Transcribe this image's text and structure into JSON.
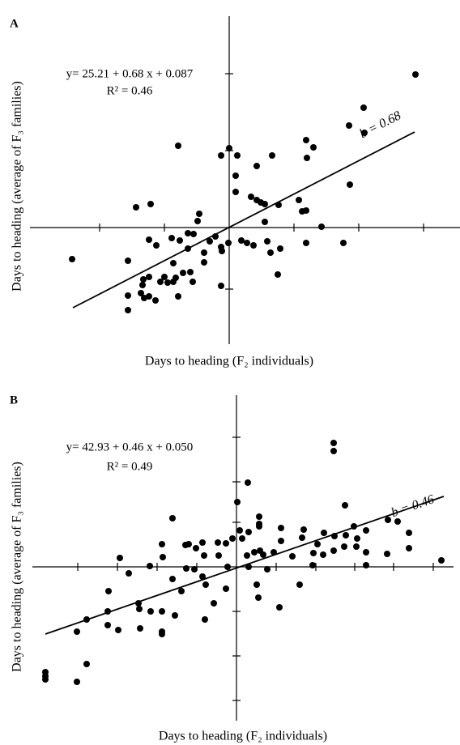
{
  "chart_data": [
    {
      "type": "scatter",
      "panel_label": "A",
      "equation": "y= 25.21 + 0.68 x + 0.087",
      "r_squared": "R² = 0.46",
      "slope_label": "b = 0.68",
      "x_label": "Days to heading (F₂ individuals)",
      "y_label": "Days to heading (average of F₃ families)",
      "color": "#000000",
      "xlim": [
        -24.6,
        28.5
      ],
      "ylim": [
        -14.4,
        26.1
      ],
      "xticks": [
        -16,
        -8,
        8,
        16,
        24
      ],
      "yticks": [
        -7.6,
        9.5,
        19
      ],
      "x": [
        23,
        16.6,
        14.8,
        16.7,
        9.5,
        10.4,
        -6.3,
        0,
        -1,
        1,
        5.3,
        3.4,
        0.8,
        9.6,
        14.9,
        0.8,
        2.7,
        3.4,
        3.9,
        4.4,
        6.1,
        8.6,
        9,
        9.5,
        -9.7,
        -11.5,
        -3.7,
        4.4,
        -3.9,
        11.4,
        -5.1,
        -4.4,
        -6.1,
        -7.1,
        -9.9,
        -9,
        -1.7,
        -2.4,
        1.5,
        2.2,
        3,
        4.7,
        5.1,
        6.3,
        -1,
        -0.9,
        -0.1,
        -3.1,
        -5.1,
        9.5,
        14.1,
        -19.4,
        -12.5,
        -6.9,
        -4.8,
        -5.7,
        -4.5,
        -6.6,
        -6.9,
        -7.6,
        -8,
        -8.5,
        -9.9,
        -10.6,
        -10.7,
        -10.9,
        -9.9,
        -9.1,
        -10.5,
        -12.5,
        -12.5,
        -1,
        6,
        -6.3,
        -3.1
      ],
      "y": [
        18.9,
        14.8,
        12.6,
        11.7,
        10.8,
        9.9,
        10.1,
        9.8,
        8.9,
        8.9,
        8.9,
        7.6,
        6.4,
        8.6,
        5.3,
        4.4,
        3.8,
        3.4,
        3.1,
        2.9,
        2.8,
        3.4,
        2,
        2.1,
        2.9,
        2.5,
        1.7,
        0.7,
        0.8,
        0.1,
        -0.7,
        -0.8,
        -1.6,
        -1.3,
        -1.5,
        -2.2,
        -1.1,
        -1.7,
        -1.6,
        -1.9,
        -2.2,
        -1.7,
        -3.1,
        -2.6,
        -2.4,
        -2.9,
        -1.9,
        -3.1,
        -2.6,
        -1.9,
        -1.9,
        -3.9,
        -4.1,
        -4.4,
        -5.5,
        -5.6,
        -6.7,
        -6.2,
        -6.7,
        -6.8,
        -6.1,
        -6.7,
        -6.1,
        -6.4,
        -7.1,
        -8.1,
        -8.5,
        -9,
        -8.7,
        -8.4,
        -10.2,
        -7.2,
        -5.8,
        -8.5,
        -4.3
      ],
      "trend": {
        "x": [
          -19.3,
          22.9
        ],
        "y": [
          -9.9,
          11.8
        ]
      }
    },
    {
      "type": "scatter",
      "panel_label": "B",
      "equation": "y= 42.93 + 0.46 x + 0.050",
      "r_squared": "R² = 0.49",
      "slope_label": "b = 0.46",
      "x_label": "Days to heading (F₂ individuals)",
      "y_label": "Days to heading (average of F₃ families)",
      "color": "#000000",
      "xlim": [
        -25.2,
        26.8
      ],
      "ylim": [
        -19,
        21.2
      ],
      "xticks": [
        -19.6,
        -14.7,
        -9.8,
        -4.9,
        4.9,
        9.8,
        14.6,
        19.4,
        24.3
      ],
      "yticks": [
        -16.5,
        -11,
        -5.5,
        5.5,
        10.5,
        16
      ],
      "x": [
        12,
        12,
        1.4,
        13.4,
        0.1,
        2.8,
        -7.9,
        19.9,
        0.4,
        1.5,
        2.8,
        2.8,
        5.5,
        8.3,
        10.8,
        14.5,
        16,
        18.7,
        21.3,
        -0.5,
        -2.3,
        0.7,
        5.5,
        8.1,
        12.1,
        13.5,
        14.9,
        -4.2,
        -9.2,
        -1.3,
        -14.4,
        -10.7,
        -9.1,
        -5.9,
        1.3,
        2.2,
        2.9,
        3.3,
        4.6,
        6.9,
        10,
        9.5,
        10.7,
        12,
        13.3,
        14.8,
        16,
        18.6,
        21.3,
        25.3,
        -6.3,
        -5,
        -4,
        -2.2,
        -7.9,
        -6.2,
        -5.2,
        -4.2,
        -1.1,
        1.5,
        2.5,
        3.8,
        -3.8,
        -6.8,
        -2.8,
        -1.3,
        -13.3,
        -15.8,
        -12.1,
        -12,
        -10.6,
        -9.2,
        -15.9,
        -11.9,
        -14.6,
        -9.2,
        -9.2,
        -7.6,
        -3.9,
        2.7,
        5.3,
        7.8,
        9.4,
        16,
        -18.5,
        -19.7,
        -15.9,
        -23.6,
        -23.6,
        -23.6,
        -18.5,
        -19.7
      ],
      "y": [
        15.3,
        14.3,
        10.4,
        7.6,
        8,
        6.2,
        6,
        5.6,
        4.5,
        4.3,
        5.3,
        5,
        4.8,
        4.6,
        4.2,
        5,
        4.5,
        5.8,
        4.2,
        3.5,
        3,
        3.5,
        3.2,
        3.6,
        3.8,
        3.9,
        3.5,
        3,
        2.8,
        2.9,
        1.1,
        0.1,
        1.2,
        2.8,
        1.4,
        1.8,
        2,
        1.5,
        1.8,
        1.3,
        2.8,
        1.7,
        1.5,
        2,
        2.5,
        2.5,
        1.8,
        1.6,
        2.3,
        0.8,
        2.7,
        2.3,
        1.4,
        1.4,
        -1.5,
        -0.2,
        -0.3,
        -1.2,
        0,
        0,
        -2.2,
        -0.3,
        -2.2,
        -3,
        -4.5,
        -2.7,
        -0.8,
        -3,
        -4.5,
        -5.2,
        -5.5,
        -5.5,
        -5.5,
        -7.6,
        -7.8,
        -8,
        -8.3,
        -6,
        -6.5,
        -3.8,
        -5,
        -2.2,
        0.2,
        0.2,
        -6.5,
        -8,
        -7.2,
        -13,
        -13.5,
        -13.9,
        -12,
        -14.2
      ],
      "trend": {
        "x": [
          -23.6,
          25.6
        ],
        "y": [
          -8.3,
          8.7
        ]
      }
    }
  ]
}
